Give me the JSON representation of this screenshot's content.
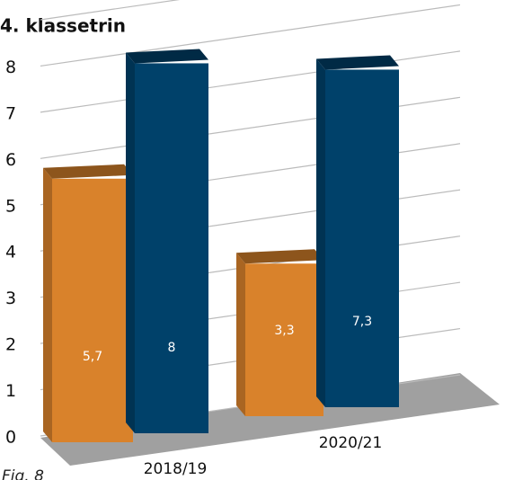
{
  "chart_data": {
    "type": "bar3d",
    "title": "4. klassetrin",
    "caption": "Fig. 8",
    "categories": [
      "2018/19",
      "2020/21"
    ],
    "series": [
      {
        "color": "#d9822b",
        "values": [
          5.7,
          3.3
        ],
        "value_labels": [
          "5,7",
          "3,3"
        ]
      },
      {
        "color": "#00416a",
        "values": [
          8,
          7.3
        ],
        "value_labels": [
          "8",
          "7,3"
        ]
      }
    ],
    "ylim": [
      0,
      9
    ],
    "yticks": [
      0,
      1,
      2,
      3,
      4,
      5,
      6,
      7,
      8
    ],
    "grid": true
  }
}
